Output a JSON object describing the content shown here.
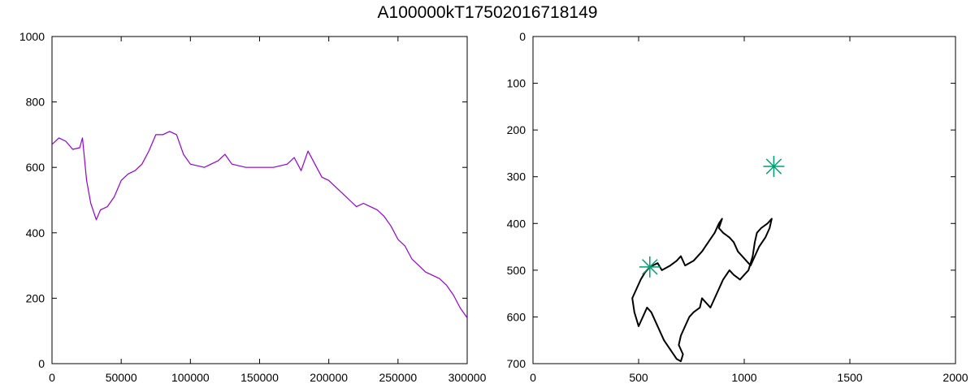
{
  "title": "A100000kT17502016718149",
  "chart_data": [
    {
      "type": "line",
      "xlim": [
        0,
        300000
      ],
      "ylim": [
        0,
        1000
      ],
      "x_ticks": [
        0,
        50000,
        100000,
        150000,
        200000,
        250000,
        300000
      ],
      "x_tick_labels": [
        "0",
        "50000",
        "100000",
        "150000",
        "200000",
        "250000",
        "300000"
      ],
      "y_ticks": [
        0,
        200,
        400,
        600,
        800,
        1000
      ],
      "y_tick_labels": [
        "0",
        "200",
        "400",
        "600",
        "800",
        "1000"
      ],
      "grid": false,
      "color": "#9400d3",
      "series": [
        {
          "x": [
            0,
            5000,
            10000,
            15000,
            20000,
            22000,
            25000,
            28000,
            32000,
            35000,
            40000,
            45000,
            50000,
            55000,
            60000,
            65000,
            70000,
            75000,
            80000,
            85000,
            90000,
            95000,
            100000,
            110000,
            120000,
            125000,
            130000,
            140000,
            150000,
            160000,
            170000,
            175000,
            180000,
            185000,
            190000,
            195000,
            200000,
            205000,
            210000,
            215000,
            220000,
            225000,
            230000,
            235000,
            240000,
            245000,
            250000,
            255000,
            260000,
            265000,
            270000,
            275000,
            280000,
            285000,
            290000,
            295000,
            300000
          ],
          "y": [
            670,
            690,
            680,
            655,
            660,
            690,
            560,
            490,
            440,
            470,
            480,
            510,
            560,
            580,
            590,
            610,
            650,
            700,
            700,
            710,
            700,
            640,
            610,
            600,
            620,
            640,
            610,
            600,
            600,
            600,
            610,
            630,
            590,
            650,
            610,
            570,
            560,
            540,
            520,
            500,
            480,
            490,
            480,
            470,
            450,
            420,
            380,
            360,
            320,
            300,
            280,
            270,
            260,
            240,
            210,
            170,
            140
          ]
        }
      ]
    },
    {
      "type": "line",
      "xlim": [
        0,
        2000
      ],
      "ylim": [
        0,
        700
      ],
      "y_inverted": true,
      "x_ticks": [
        0,
        500,
        1000,
        1500,
        2000
      ],
      "x_tick_labels": [
        "0",
        "500",
        "1000",
        "1500",
        "2000"
      ],
      "y_ticks": [
        0,
        100,
        200,
        300,
        400,
        500,
        600,
        700
      ],
      "y_tick_labels": [
        "0",
        "100",
        "200",
        "300",
        "400",
        "500",
        "600",
        "700"
      ],
      "grid": false,
      "color": "#000000",
      "marker_color": "#009e73",
      "markers": [
        {
          "x": 1140,
          "y": 278
        },
        {
          "x": 553,
          "y": 493
        }
      ],
      "series": [
        {
          "x": [
            553,
            590,
            610,
            650,
            680,
            700,
            720,
            760,
            780,
            800,
            830,
            860,
            880,
            895,
            880,
            900,
            930,
            950,
            970,
            990,
            1010,
            1030,
            1050,
            1070,
            1100,
            1120,
            1130,
            1110,
            1080,
            1060,
            1050,
            1040,
            1020,
            1000,
            980,
            950,
            930,
            900,
            880,
            860,
            840,
            820,
            800,
            790,
            760,
            740,
            720,
            700,
            690,
            710,
            700,
            680,
            650,
            620,
            600,
            580,
            560,
            540,
            520,
            500,
            480,
            470,
            490,
            510,
            530,
            553
          ],
          "y": [
            493,
            485,
            500,
            490,
            480,
            470,
            490,
            480,
            470,
            460,
            440,
            420,
            400,
            390,
            410,
            420,
            430,
            440,
            460,
            470,
            480,
            490,
            470,
            450,
            430,
            410,
            390,
            400,
            410,
            420,
            440,
            470,
            500,
            510,
            520,
            510,
            500,
            520,
            540,
            560,
            580,
            570,
            560,
            580,
            590,
            600,
            620,
            640,
            660,
            680,
            695,
            690,
            670,
            650,
            630,
            610,
            590,
            580,
            600,
            620,
            590,
            560,
            540,
            520,
            505,
            493
          ]
        }
      ]
    }
  ]
}
